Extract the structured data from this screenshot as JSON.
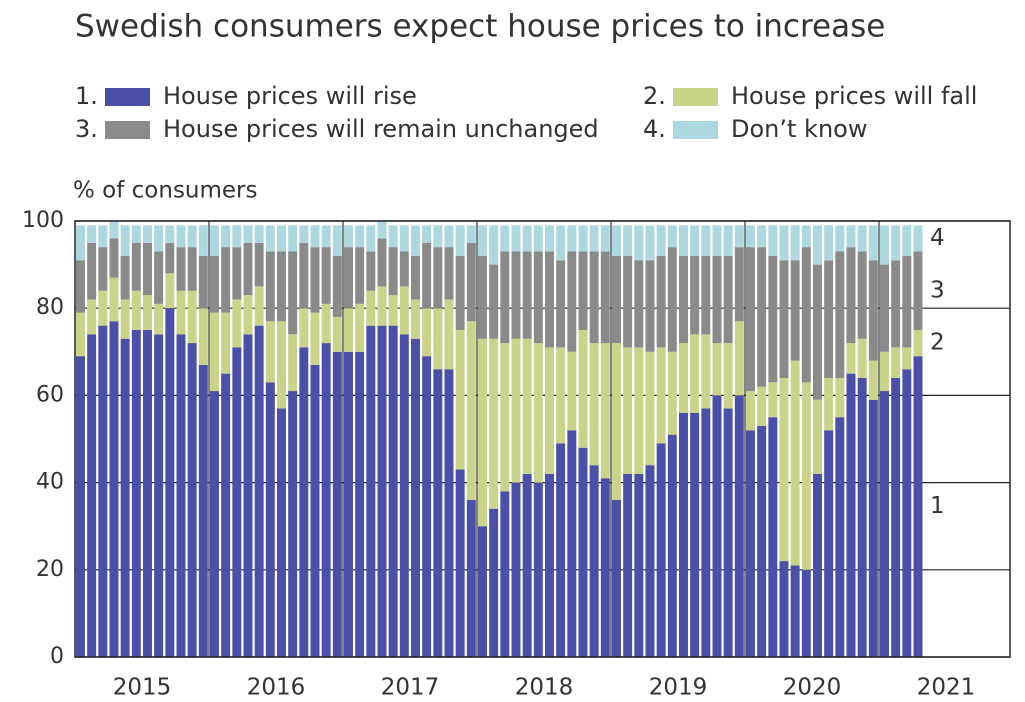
{
  "chart_data": {
    "type": "stacked_bar",
    "title": "Swedish consumers expect house prices to increase",
    "y_label": "% of consumers",
    "year_labels": [
      "2015",
      "2016",
      "2017",
      "2018",
      "2019",
      "2020",
      "2021"
    ],
    "ylim": [
      0,
      100
    ],
    "yticks": [
      0,
      20,
      40,
      60,
      80,
      100
    ],
    "grid": true,
    "segment_labels": [
      "1",
      "2",
      "3",
      "4"
    ],
    "series": [
      {
        "key": "1.",
        "name": "House prices will rise",
        "color": "#4a4fa8",
        "values": [
          69,
          74,
          76,
          77,
          73,
          75,
          75,
          74,
          80,
          74,
          72,
          67,
          61,
          65,
          71,
          74,
          76,
          63,
          57,
          61,
          71,
          67,
          72,
          70,
          70,
          70,
          76,
          76,
          76,
          74,
          73,
          69,
          66,
          66,
          43,
          36,
          30,
          34,
          38,
          40,
          42,
          40,
          42,
          49,
          52,
          48,
          44,
          41,
          36,
          42,
          42,
          44,
          49,
          51,
          56,
          56,
          57,
          60,
          57,
          60,
          52,
          53,
          55,
          22,
          21,
          20,
          42,
          52,
          55,
          65,
          64,
          59,
          61,
          64,
          66,
          69
        ]
      },
      {
        "key": "2.",
        "name": "House prices will fall",
        "color": "#c9d48a",
        "values": [
          10,
          8,
          8,
          10,
          9,
          9,
          8,
          7,
          8,
          10,
          12,
          13,
          18,
          14,
          11,
          9,
          9,
          14,
          20,
          13,
          9,
          12,
          9,
          8,
          10,
          11,
          8,
          9,
          7,
          11,
          9,
          11,
          14,
          16,
          32,
          41,
          43,
          39,
          34,
          33,
          31,
          32,
          29,
          22,
          18,
          27,
          28,
          31,
          36,
          29,
          29,
          26,
          22,
          19,
          16,
          18,
          17,
          12,
          15,
          17,
          9,
          9,
          8,
          42,
          47,
          43,
          17,
          12,
          9,
          7,
          9,
          9,
          9,
          7,
          5,
          6
        ]
      },
      {
        "key": "3.",
        "name": "House prices will remain unchanged",
        "color": "#8a8a8a",
        "values": [
          12,
          13,
          10,
          9,
          10,
          11,
          12,
          12,
          7,
          10,
          10,
          12,
          13,
          15,
          12,
          12,
          10,
          16,
          16,
          19,
          15,
          15,
          13,
          14,
          14,
          13,
          9,
          11,
          11,
          8,
          10,
          15,
          14,
          12,
          17,
          18,
          19,
          17,
          21,
          20,
          20,
          21,
          22,
          20,
          23,
          18,
          21,
          21,
          20,
          21,
          20,
          21,
          21,
          24,
          20,
          18,
          18,
          20,
          20,
          17,
          33,
          32,
          29,
          27,
          23,
          31,
          31,
          27,
          29,
          22,
          20,
          23,
          20,
          20,
          21,
          18
        ]
      },
      {
        "key": "4.",
        "name": "Don’t know",
        "color": "#add8e0",
        "values": [
          8,
          4,
          5,
          4,
          7,
          4,
          4,
          6,
          4,
          5,
          5,
          7,
          7,
          5,
          5,
          4,
          4,
          6,
          6,
          6,
          4,
          5,
          5,
          7,
          5,
          5,
          6,
          4,
          5,
          6,
          7,
          4,
          5,
          5,
          7,
          4,
          7,
          9,
          6,
          6,
          6,
          6,
          6,
          8,
          6,
          6,
          6,
          6,
          7,
          7,
          8,
          8,
          7,
          5,
          7,
          7,
          7,
          7,
          7,
          5,
          5,
          5,
          7,
          8,
          8,
          5,
          9,
          8,
          6,
          5,
          6,
          8,
          9,
          8,
          7,
          6
        ]
      }
    ]
  }
}
